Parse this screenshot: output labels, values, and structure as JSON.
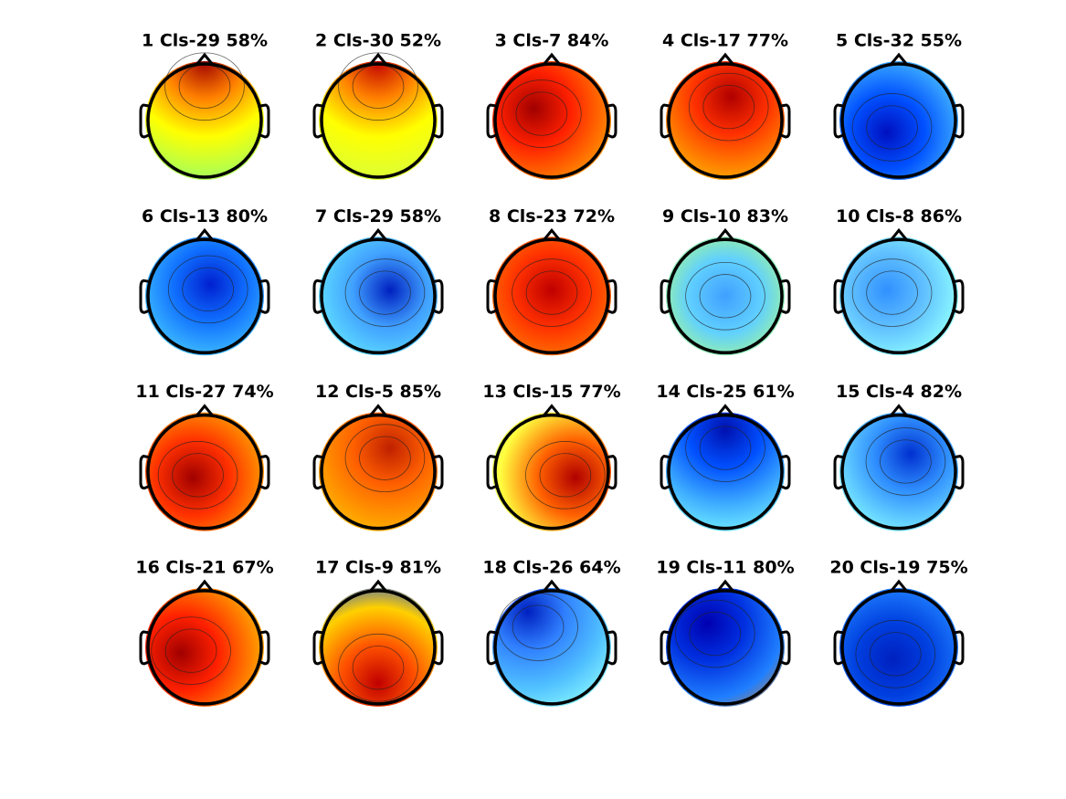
{
  "panels": [
    {
      "title": "1 Cls-29 58%"
    },
    {
      "title": "2 Cls-30 52%"
    },
    {
      "title": "3 Cls-7 84%"
    },
    {
      "title": "4 Cls-17 77%"
    },
    {
      "title": "5 Cls-32 55%"
    },
    {
      "title": "6 Cls-13 80%"
    },
    {
      "title": "7 Cls-29 58%"
    },
    {
      "title": "8 Cls-23 72%"
    },
    {
      "title": "9 Cls-10 83%"
    },
    {
      "title": "10 Cls-8 86%"
    },
    {
      "title": "11 Cls-27 74%"
    },
    {
      "title": "12 Cls-5 85%"
    },
    {
      "title": "13 Cls-15 77%"
    },
    {
      "title": "14 Cls-25 61%"
    },
    {
      "title": "15 Cls-4 82%"
    },
    {
      "title": "16 Cls-21 67%"
    },
    {
      "title": "17 Cls-9 81%"
    },
    {
      "title": "18 Cls-26 64%"
    },
    {
      "title": "19 Cls-11 80%"
    },
    {
      "title": "20 Cls-19 75%"
    }
  ]
}
